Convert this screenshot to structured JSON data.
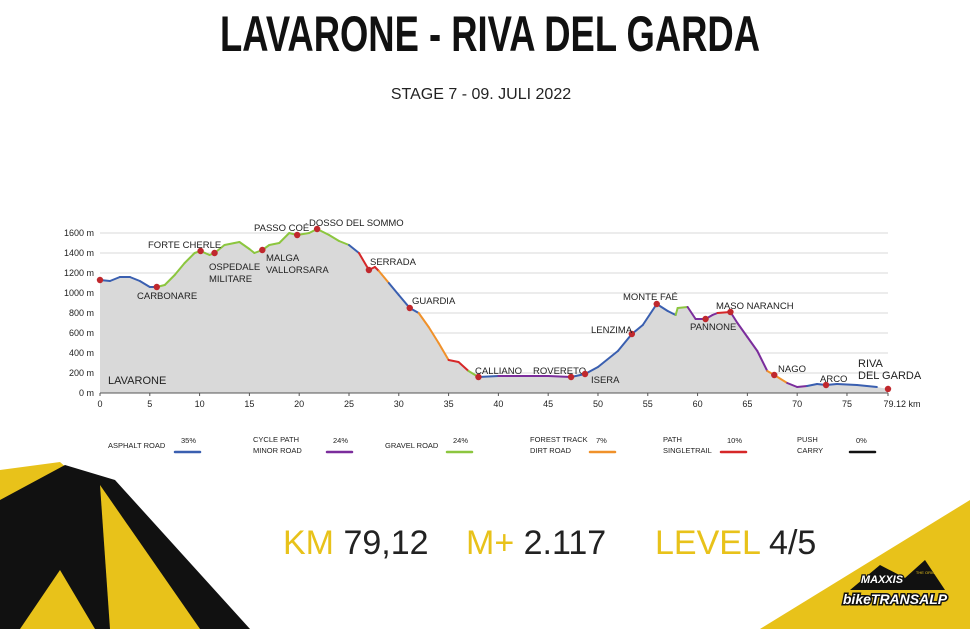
{
  "header": {
    "title": "LAVARONE - RIVA DEL GARDA",
    "subtitle": "STAGE 7 - 09. JULI 2022"
  },
  "chart_data": {
    "type": "area",
    "fill": "#d9d9d9",
    "x": [
      0,
      1,
      2,
      3,
      4,
      5,
      5.7,
      6.5,
      7.5,
      8.5,
      9.5,
      10.1,
      11,
      11.5,
      12.5,
      13.5,
      14,
      15,
      15.5,
      16.3,
      17,
      18,
      19,
      19.8,
      21,
      21.8,
      23,
      24,
      25,
      26,
      27,
      27.6,
      28,
      29,
      30,
      31.1,
      32,
      33,
      34,
      35,
      36,
      37,
      38,
      40,
      45,
      47.3,
      48.7,
      50,
      52,
      53.4,
      54.5,
      55.9,
      57,
      57.8,
      58,
      59,
      59.8,
      60.8,
      61.5,
      62,
      63.3,
      64,
      65,
      66,
      67,
      67.7,
      69,
      70,
      71,
      72,
      72.9,
      74,
      76,
      78,
      79.12
    ],
    "values": [
      1130,
      1120,
      1160,
      1160,
      1120,
      1060,
      1060,
      1080,
      1180,
      1300,
      1400,
      1420,
      1380,
      1400,
      1480,
      1500,
      1510,
      1440,
      1400,
      1430,
      1480,
      1500,
      1600,
      1580,
      1600,
      1640,
      1580,
      1520,
      1480,
      1400,
      1230,
      1260,
      1220,
      1100,
      980,
      850,
      800,
      660,
      500,
      330,
      310,
      220,
      160,
      170,
      170,
      160,
      190,
      260,
      420,
      590,
      680,
      890,
      820,
      780,
      850,
      860,
      740,
      740,
      780,
      800,
      810,
      700,
      560,
      420,
      220,
      180,
      100,
      60,
      70,
      90,
      80,
      90,
      80,
      60,
      40
    ],
    "segment_colors": [
      "#3a5fb0",
      "#3a5fb0",
      "#3a5fb0",
      "#3a5fb0",
      "#3a5fb0",
      "#3a5fb0",
      "#8cc63f",
      "#8cc63f",
      "#8cc63f",
      "#8cc63f",
      "#8cc63f",
      "#8cc63f",
      "#8cc63f",
      "#8cc63f",
      "#8cc63f",
      "#8cc63f",
      "#8cc63f",
      "#8cc63f",
      "#8cc63f",
      "#8cc63f",
      "#8cc63f",
      "#8cc63f",
      "#8cc63f",
      "#8cc63f",
      "#8cc63f",
      "#8cc63f",
      "#8cc63f",
      "#8cc63f",
      "#3a5fb0",
      "#d62728",
      "#d62728",
      "#d62728",
      "#f0912a",
      "#3a5fb0",
      "#3a5fb0",
      "#3a5fb0",
      "#f0912a",
      "#f0912a",
      "#f0912a",
      "#d62728",
      "#d62728",
      "#8cc63f",
      "#3a5fb0",
      "#7b2d9c",
      "#7b2d9c",
      "#3a5fb0",
      "#3a5fb0",
      "#3a5fb0",
      "#3a5fb0",
      "#3a5fb0",
      "#3a5fb0",
      "#3a5fb0",
      "#3a5fb0",
      "#8cc63f",
      "#8cc63f",
      "#7b2d9c",
      "#7b2d9c",
      "#7b2d9c",
      "#7b2d9c",
      "#d62728",
      "#7b2d9c",
      "#7b2d9c",
      "#7b2d9c",
      "#7b2d9c",
      "#f0912a",
      "#f0912a",
      "#7b2d9c",
      "#7b2d9c",
      "#3a5fb0",
      "#3a5fb0",
      "#3a5fb0",
      "#3a5fb0",
      "#3a5fb0"
    ],
    "xlim": [
      0,
      79.12
    ],
    "ylim": [
      0,
      1700
    ],
    "xticks": [
      0,
      5,
      10,
      15,
      20,
      25,
      30,
      35,
      40,
      45,
      50,
      55,
      60,
      65,
      70,
      75,
      {
        "value": 79.12,
        "label": "79.12 km"
      }
    ],
    "yticks": [
      {
        "value": 0,
        "label": "0 m"
      },
      {
        "value": 200,
        "label": "200 m"
      },
      {
        "value": 400,
        "label": "400 m"
      },
      {
        "value": 600,
        "label": "600 m"
      },
      {
        "value": 800,
        "label": "800 m"
      },
      {
        "value": 1000,
        "label": "1000 m"
      },
      {
        "value": 1200,
        "label": "1200 m"
      },
      {
        "value": 1400,
        "label": "1400 m"
      },
      {
        "value": 1600,
        "label": "1600 m"
      }
    ],
    "grid": true,
    "waypoints": [
      {
        "lines": [
          "LAVARONE"
        ],
        "km": 0,
        "elevation": 1130
      },
      {
        "lines": [
          "CARBONARE"
        ],
        "km": 5.7,
        "elevation": 1060
      },
      {
        "lines": [
          "FORTE CHERLE"
        ],
        "km": 10.1,
        "elevation": 1420
      },
      {
        "lines": [
          "OSPEDALE",
          "MILITARE"
        ],
        "km": 11.5,
        "elevation": 1400
      },
      {
        "lines": [
          "MALGA",
          "VALLORSARA"
        ],
        "km": 16.3,
        "elevation": 1430
      },
      {
        "lines": [
          "PASSO COÉ"
        ],
        "km": 19.8,
        "elevation": 1580
      },
      {
        "lines": [
          "DOSSO DEL SOMMO"
        ],
        "km": 21.8,
        "elevation": 1640
      },
      {
        "lines": [
          "SERRADA"
        ],
        "km": 27,
        "elevation": 1230
      },
      {
        "lines": [
          "GUARDIA"
        ],
        "km": 31.1,
        "elevation": 850
      },
      {
        "lines": [
          "CALLIANO"
        ],
        "km": 38,
        "elevation": 160
      },
      {
        "lines": [
          "ROVERETO"
        ],
        "km": 47.3,
        "elevation": 160
      },
      {
        "lines": [
          "ISERA"
        ],
        "km": 48.7,
        "elevation": 190
      },
      {
        "lines": [
          "LENZIMA"
        ],
        "km": 53.4,
        "elevation": 590
      },
      {
        "lines": [
          "MONTE FAÉ"
        ],
        "km": 55.9,
        "elevation": 890
      },
      {
        "lines": [
          "PANNONE"
        ],
        "km": 60.8,
        "elevation": 740
      },
      {
        "lines": [
          "MASO NARANCH"
        ],
        "km": 63.3,
        "elevation": 810
      },
      {
        "lines": [
          "NAGO"
        ],
        "km": 67.7,
        "elevation": 180
      },
      {
        "lines": [
          "ARCO"
        ],
        "km": 72.9,
        "elevation": 80
      },
      {
        "lines": [
          "RIVA",
          "DEL GARDA"
        ],
        "km": 79.12,
        "elevation": 40
      }
    ],
    "legend": [
      {
        "lines": [
          "ASPHALT ROAD"
        ],
        "share": "35%",
        "color": "#3a5fb0"
      },
      {
        "lines": [
          "CYCLE PATH",
          "MINOR ROAD"
        ],
        "share": "24%",
        "color": "#7b2d9c"
      },
      {
        "lines": [
          "GRAVEL ROAD"
        ],
        "share": "24%",
        "color": "#8cc63f"
      },
      {
        "lines": [
          "FOREST TRACK",
          "DIRT ROAD"
        ],
        "share": "7%",
        "color": "#f0912a"
      },
      {
        "lines": [
          "PATH",
          "SINGLETRAIL"
        ],
        "share": "10%",
        "color": "#d62728"
      },
      {
        "lines": [
          "PUSH",
          "CARRY"
        ],
        "share": "0%",
        "color": "#111111"
      }
    ]
  },
  "stats": [
    {
      "label": "KM",
      "value": "79,12"
    },
    {
      "label": "M+",
      "value": "2.117"
    },
    {
      "label": "LEVEL",
      "value": "4/5"
    }
  ],
  "logo": {
    "brand": "MAXXIS",
    "tag": "THE ORIGINAL",
    "name": "bikeTRANSALP"
  }
}
